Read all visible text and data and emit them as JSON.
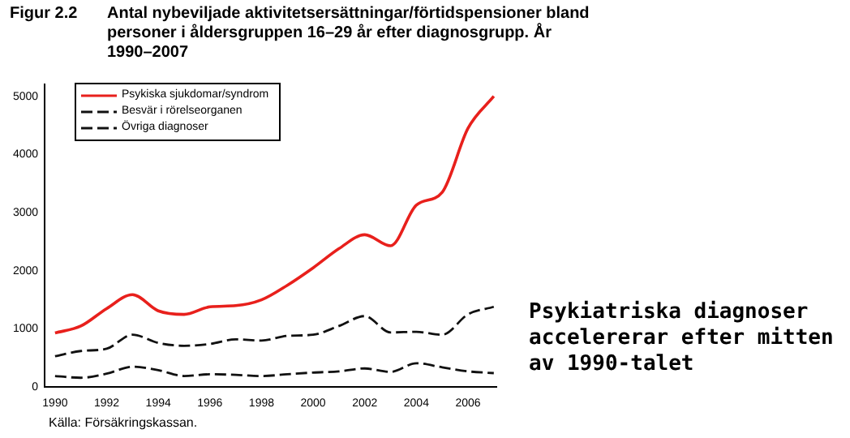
{
  "chart_data": {
    "type": "line",
    "title": "Antal nybeviljade aktivitetsersättningar/förtidspensioner bland personer i åldersgruppen 16–29 år efter diagnosgrupp. År 1990–2007",
    "annotations": [
      "Figur 2.2",
      "Psykiatriska diagnoser accelererar efter mitten av 1990-talet",
      "Källa: Försäkringskassan."
    ],
    "x": [
      1990,
      1991,
      1992,
      1993,
      1994,
      1995,
      1996,
      1997,
      1998,
      1999,
      2000,
      2001,
      2002,
      2003,
      2004,
      2005,
      2006,
      2007
    ],
    "series": [
      {
        "name": "Psykiska sjukdomar/syndrom",
        "color": "#e8201c",
        "line_style": "solid",
        "values": [
          930,
          1050,
          1350,
          1590,
          1310,
          1250,
          1380,
          1400,
          1500,
          1750,
          2050,
          2380,
          2620,
          2430,
          3130,
          3350,
          4450,
          5000
        ]
      },
      {
        "name": "Besvär i rörelseorganen",
        "color": "#111111",
        "line_style": "dashed",
        "values": [
          530,
          620,
          660,
          900,
          760,
          710,
          740,
          820,
          800,
          880,
          900,
          1050,
          1220,
          940,
          950,
          900,
          1250,
          1380
        ]
      },
      {
        "name": "Övriga diagnoser",
        "color": "#111111",
        "line_style": "dashed",
        "values": [
          190,
          160,
          230,
          350,
          290,
          190,
          220,
          210,
          190,
          220,
          250,
          270,
          320,
          260,
          410,
          340,
          270,
          240
        ]
      }
    ],
    "xlim": [
      1989.6,
      2007.1
    ],
    "xticks": [
      1990,
      1992,
      1994,
      1996,
      1998,
      2000,
      2002,
      2004,
      2006
    ],
    "ylim": [
      0,
      5200
    ],
    "yticks": [
      0,
      1000,
      2000,
      3000,
      4000,
      5000
    ],
    "grid": false,
    "legend": "top left",
    "marker": "none"
  }
}
